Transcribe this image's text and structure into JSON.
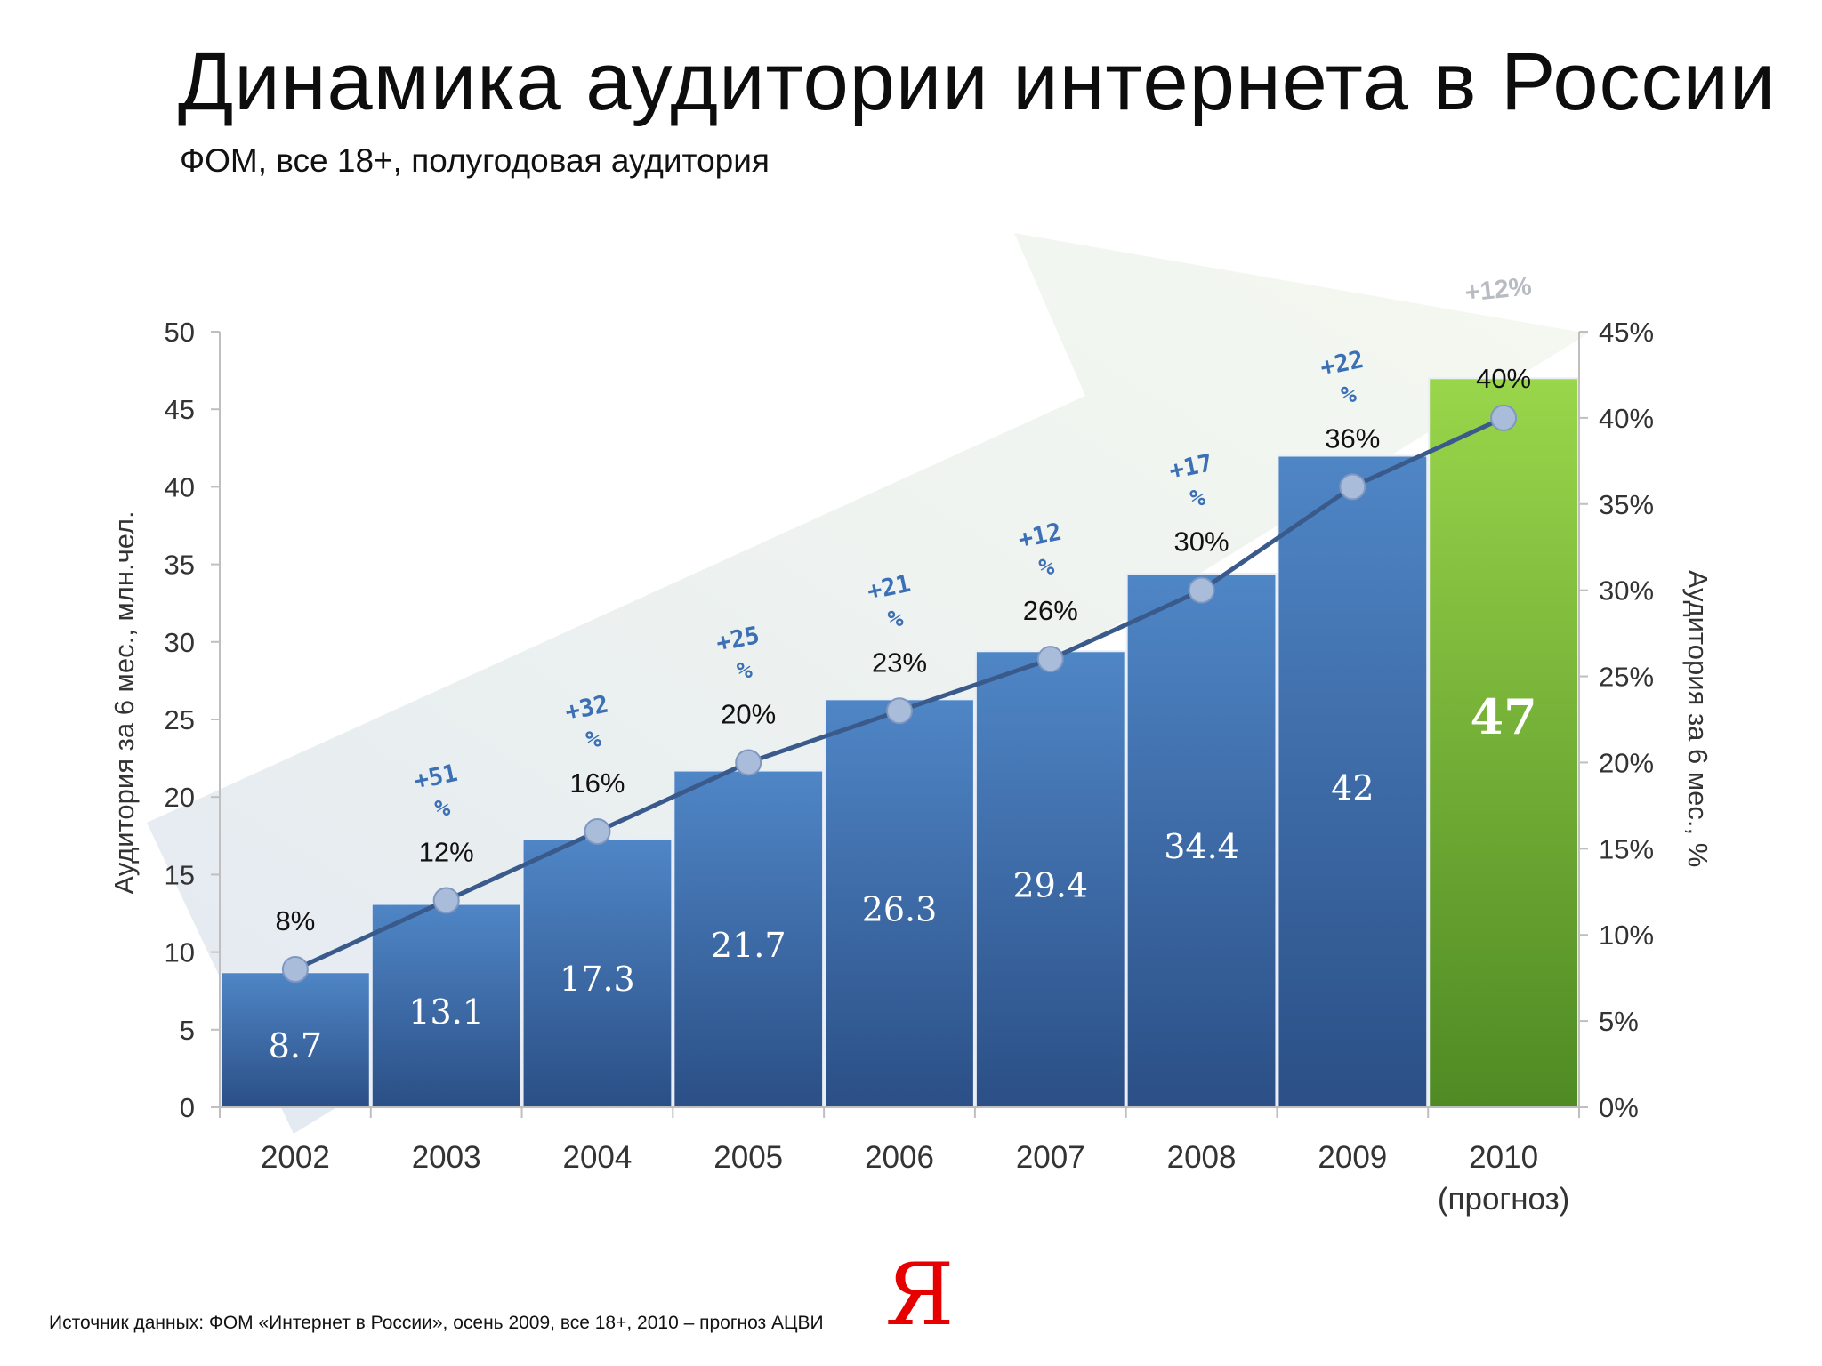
{
  "title": "Динамика аудитории интернета в России",
  "subtitle": "ФОМ, все 18+, полугодовая аудитория",
  "footer": "Источник данных: ФОМ «Интернет в России», осень 2009, все 18+, 2010 – прогноз АЦВИ",
  "logo_text": "Я",
  "colors": {
    "bar_top": "#4f86c6",
    "bar_bottom": "#2b4f86",
    "forecast_top": "#9ad64a",
    "forecast_bottom": "#4f8a24",
    "line": "#3a5a8c",
    "marker": "#a9bcd9",
    "growth_text": "#3b6fb6",
    "arrow_fill": "#e6ecf4"
  },
  "chart_data": {
    "type": "bar",
    "categories": [
      "2002",
      "2003",
      "2004",
      "2005",
      "2006",
      "2007",
      "2008",
      "2009",
      "2010"
    ],
    "category_sublabels": [
      "",
      "",
      "",
      "",
      "",
      "",
      "",
      "",
      "(прогноз)"
    ],
    "values": [
      8.7,
      13.1,
      17.3,
      21.7,
      26.3,
      29.4,
      34.4,
      42,
      47
    ],
    "value_labels": [
      "8.7",
      "13.1",
      "17.3",
      "21.7",
      "26.3",
      "29.4",
      "34.4",
      "42",
      "47"
    ],
    "forecast_index": 8,
    "line_series": {
      "name": "Аудитория за 6 мес., %",
      "values": [
        8,
        12,
        16,
        20,
        23,
        26,
        30,
        36,
        40
      ],
      "labels": [
        "8%",
        "12%",
        "16%",
        "20%",
        "23%",
        "26%",
        "30%",
        "36%",
        "40%"
      ]
    },
    "growth_labels": [
      {
        "index": 1,
        "line1": "+51",
        "line2": "%"
      },
      {
        "index": 2,
        "line1": "+32",
        "line2": "%"
      },
      {
        "index": 3,
        "line1": "+25",
        "line2": "%"
      },
      {
        "index": 4,
        "line1": "+21",
        "line2": "%"
      },
      {
        "index": 5,
        "line1": "+12",
        "line2": "%"
      },
      {
        "index": 6,
        "line1": "+17",
        "line2": "%"
      },
      {
        "index": 7,
        "line1": "+22",
        "line2": "%"
      }
    ],
    "forecast_growth_label": "+12%",
    "ylabel_left": "Аудитория за 6 мес.,  млн.чел.",
    "ylabel_right": "Аудитория за 6 мес., %",
    "ylim_left": [
      0,
      50
    ],
    "yticks_left": [
      "0",
      "5",
      "10",
      "15",
      "20",
      "25",
      "30",
      "35",
      "40",
      "45",
      "50"
    ],
    "ylim_right": [
      0,
      45
    ],
    "yticks_right": [
      "0%",
      "5%",
      "10%",
      "15%",
      "20%",
      "25%",
      "30%",
      "35%",
      "40%",
      "45%"
    ]
  }
}
